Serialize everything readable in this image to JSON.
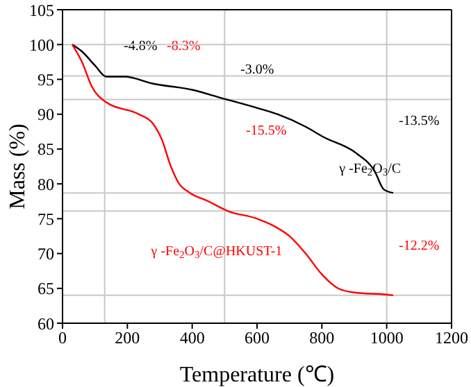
{
  "chart_data": {
    "type": "line",
    "xlabel": "Temperature (℃)",
    "ylabel": "Mass (%)",
    "xlim": [
      0,
      1200
    ],
    "xticks": [
      0,
      200,
      400,
      600,
      800,
      1000,
      1200
    ],
    "ylim": [
      60,
      105
    ],
    "yticks": [
      60,
      65,
      70,
      75,
      80,
      85,
      90,
      95,
      100,
      105
    ],
    "grid": false,
    "marker": "none",
    "line_style": "solid",
    "series": [
      {
        "name": "γ -Fe$_{2}$O$_{3}$/C",
        "color": "#000000",
        "x": [
          30,
          60,
          100,
          135,
          192,
          278,
          400,
          492,
          600,
          663,
          750,
          806,
          906,
          963,
          991,
          1020
        ],
        "values": [
          100,
          99,
          97,
          95.4,
          95.4,
          94.4,
          93.5,
          92.3,
          90.9,
          90,
          88.2,
          86.7,
          84.4,
          81.8,
          79.2,
          78.7
        ]
      },
      {
        "name": "γ -Fe$_{2}$O$_{3}$/C@HKUST-1",
        "color": "#ff0000",
        "x": [
          30,
          60,
          90,
          135,
          235,
          278,
          306,
          335,
          360,
          390,
          450,
          510,
          600,
          650,
          700,
          750,
          800,
          850,
          900,
          1000,
          1020
        ],
        "values": [
          100,
          97.5,
          94,
          91.7,
          90,
          88.7,
          86.4,
          82.4,
          80,
          78.8,
          77.5,
          76.1,
          75,
          74,
          72.5,
          70,
          67,
          65,
          64.4,
          64.1,
          64
        ]
      }
    ],
    "ref_lines": [
      {
        "axis": "x",
        "value": 130,
        "color": "#c8c8c8"
      },
      {
        "axis": "x",
        "value": 500,
        "color": "#c8c8c8"
      },
      {
        "axis": "x",
        "value": 1000,
        "color": "#c8c8c8"
      },
      {
        "axis": "y",
        "value": 100,
        "color": "#c8c8c8"
      },
      {
        "axis": "y",
        "value": 95.5,
        "color": "#c8c8c8"
      },
      {
        "axis": "y",
        "value": 92.1,
        "color": "#c8c8c8"
      },
      {
        "axis": "y",
        "value": 78.7,
        "color": "#c8c8c8"
      },
      {
        "axis": "y",
        "value": 76.1,
        "color": "#c8c8c8"
      },
      {
        "axis": "y",
        "value": 64,
        "color": "#c8c8c8"
      }
    ],
    "annotations": [
      "-4.8%",
      "-8.3%",
      "-3.0%",
      "-15.5%",
      "-13.5%",
      "-12.2%"
    ]
  }
}
